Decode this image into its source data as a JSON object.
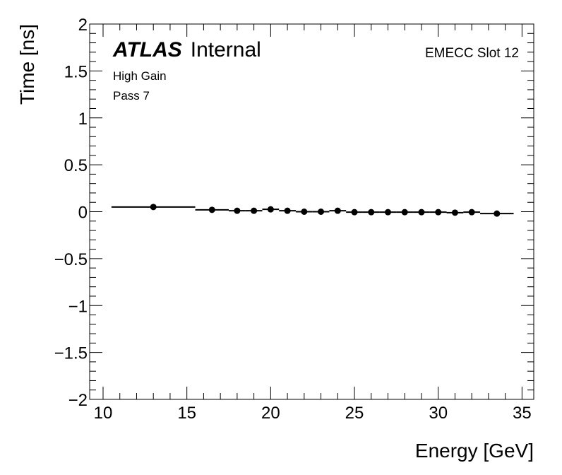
{
  "chart_data": {
    "type": "scatter",
    "xlabel": "Energy [GeV]",
    "ylabel": "Time [ns]",
    "xlim": [
      9.2,
      35.7
    ],
    "ylim": [
      -2,
      2
    ],
    "x_ticks": [
      "10",
      "15",
      "20",
      "25",
      "30",
      "35"
    ],
    "y_ticks": [
      "2",
      "1.5",
      "1",
      "0.5",
      "0",
      "−0.5",
      "−1",
      "−1.5",
      "−2"
    ],
    "grid": false,
    "series": [
      {
        "points": [
          {
            "x": 13.0,
            "y": 0.05,
            "xlo": 10.5,
            "xhi": 15.5
          },
          {
            "x": 16.5,
            "y": 0.02,
            "xlo": 15.5,
            "xhi": 17.5
          },
          {
            "x": 18.0,
            "y": 0.01,
            "xlo": 17.5,
            "xhi": 18.5
          },
          {
            "x": 19.0,
            "y": 0.01,
            "xlo": 18.5,
            "xhi": 19.5
          },
          {
            "x": 20.0,
            "y": 0.025,
            "xlo": 19.5,
            "xhi": 20.5
          },
          {
            "x": 21.0,
            "y": 0.01,
            "xlo": 20.5,
            "xhi": 21.5
          },
          {
            "x": 22.0,
            "y": 0.0,
            "xlo": 21.5,
            "xhi": 22.5
          },
          {
            "x": 23.0,
            "y": 0.0,
            "xlo": 22.5,
            "xhi": 23.5
          },
          {
            "x": 24.0,
            "y": 0.01,
            "xlo": 23.5,
            "xhi": 24.5
          },
          {
            "x": 25.0,
            "y": -0.005,
            "xlo": 24.5,
            "xhi": 25.5
          },
          {
            "x": 26.0,
            "y": -0.005,
            "xlo": 25.5,
            "xhi": 26.5
          },
          {
            "x": 27.0,
            "y": -0.005,
            "xlo": 26.5,
            "xhi": 27.5
          },
          {
            "x": 28.0,
            "y": -0.005,
            "xlo": 27.5,
            "xhi": 28.5
          },
          {
            "x": 29.0,
            "y": -0.005,
            "xlo": 28.5,
            "xhi": 29.5
          },
          {
            "x": 30.0,
            "y": -0.005,
            "xlo": 29.5,
            "xhi": 30.5
          },
          {
            "x": 31.0,
            "y": -0.01,
            "xlo": 30.5,
            "xhi": 31.5
          },
          {
            "x": 32.0,
            "y": -0.005,
            "xlo": 31.5,
            "xhi": 32.5
          },
          {
            "x": 33.5,
            "y": -0.02,
            "xlo": 32.5,
            "xhi": 34.5
          }
        ]
      }
    ]
  },
  "labels": {
    "atlas_bold": "ATLAS",
    "atlas_rest": "Internal",
    "gain": "High Gain",
    "pass": "Pass 7",
    "slot": "EMECC Slot 12"
  }
}
